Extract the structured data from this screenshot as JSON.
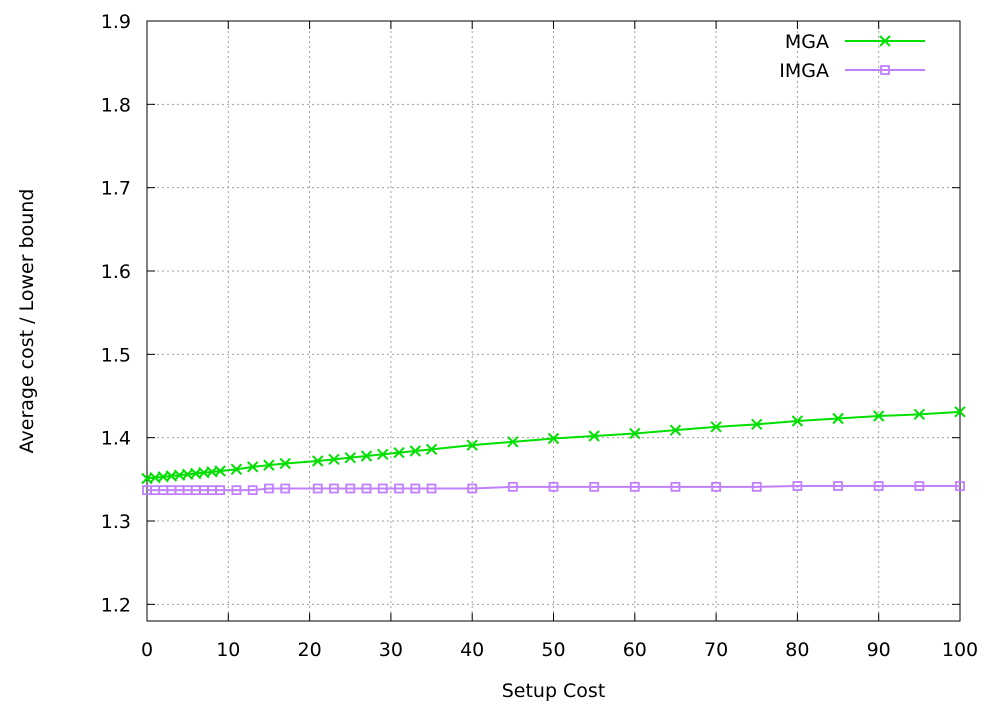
{
  "chart_data": {
    "type": "line",
    "title": "",
    "xlabel": "Setup Cost",
    "ylabel": "Average cost / Lower bound",
    "xlim": [
      0,
      100
    ],
    "ylim": [
      1.18,
      1.9
    ],
    "xticks": [
      0,
      10,
      20,
      30,
      40,
      50,
      60,
      70,
      80,
      90,
      100
    ],
    "yticks": [
      1.2,
      1.3,
      1.4,
      1.5,
      1.6,
      1.7,
      1.8,
      1.9
    ],
    "xtick_labels": [
      "0",
      "10",
      "20",
      "30",
      "40",
      "50",
      "60",
      "70",
      "80",
      "90",
      "100"
    ],
    "ytick_labels": [
      "1.2",
      "1.3",
      "1.4",
      "1.5",
      "1.6",
      "1.7",
      "1.8",
      "1.9"
    ],
    "grid": true,
    "legend_position": "top-right",
    "series": [
      {
        "name": "MGA",
        "color": "#00e000",
        "marker": "x",
        "x": [
          0,
          1,
          2,
          3,
          4,
          5,
          6,
          7,
          8,
          9,
          11,
          13,
          15,
          17,
          21,
          23,
          25,
          27,
          29,
          31,
          33,
          35,
          40,
          45,
          50,
          55,
          60,
          65,
          70,
          75,
          80,
          85,
          90,
          95,
          100
        ],
        "y": [
          1.351,
          1.352,
          1.353,
          1.354,
          1.355,
          1.356,
          1.357,
          1.358,
          1.359,
          1.36,
          1.362,
          1.365,
          1.367,
          1.369,
          1.372,
          1.374,
          1.376,
          1.378,
          1.38,
          1.382,
          1.384,
          1.386,
          1.391,
          1.395,
          1.399,
          1.402,
          1.405,
          1.409,
          1.413,
          1.416,
          1.42,
          1.423,
          1.426,
          1.428,
          1.431
        ]
      },
      {
        "name": "IMGA",
        "color": "#c080ff",
        "marker": "square",
        "x": [
          0,
          1,
          2,
          3,
          4,
          5,
          6,
          7,
          8,
          9,
          11,
          13,
          15,
          17,
          21,
          23,
          25,
          27,
          29,
          31,
          33,
          35,
          40,
          45,
          50,
          55,
          60,
          65,
          70,
          75,
          80,
          85,
          90,
          95,
          100
        ],
        "y": [
          1.337,
          1.337,
          1.337,
          1.337,
          1.337,
          1.337,
          1.337,
          1.337,
          1.337,
          1.337,
          1.337,
          1.337,
          1.339,
          1.339,
          1.339,
          1.339,
          1.339,
          1.339,
          1.339,
          1.339,
          1.339,
          1.339,
          1.339,
          1.341,
          1.341,
          1.341,
          1.341,
          1.341,
          1.341,
          1.341,
          1.342,
          1.342,
          1.342,
          1.342,
          1.342
        ]
      }
    ]
  }
}
